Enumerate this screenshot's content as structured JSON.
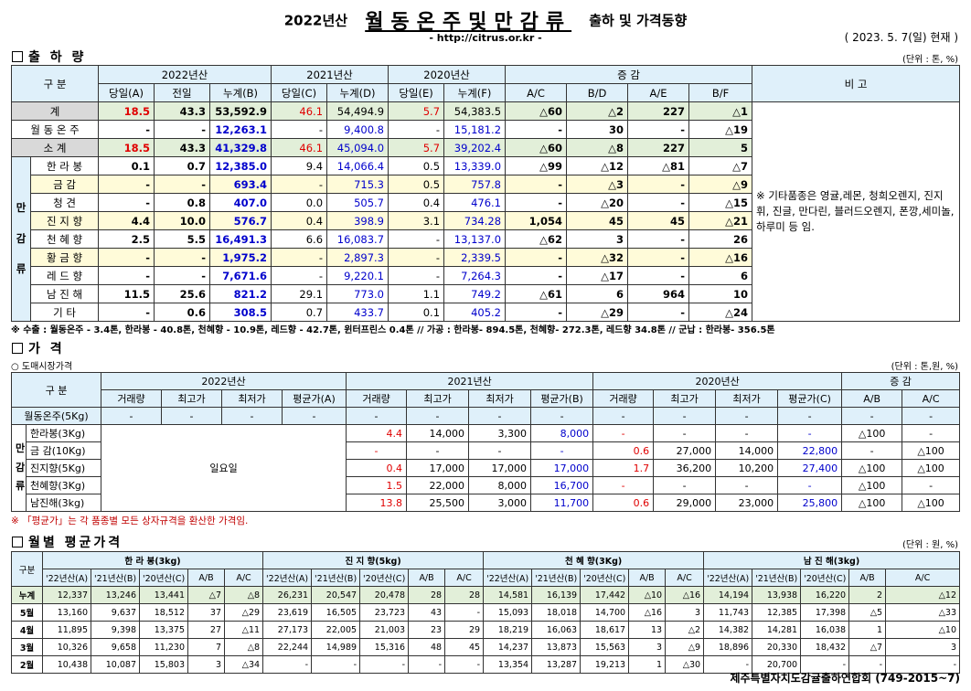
{
  "title": {
    "year": "2022년산",
    "main": "월동온주및만감류",
    "sub": "출하 및 가격동향",
    "url": "- http://citrus.or.kr -",
    "date": "( 2023.  5. 7(일) 현재 )"
  },
  "sec1": {
    "title": "출 하 량",
    "unit": "(단위 : 톤, %)",
    "h_gubun": "구    분",
    "h_2022": "2022년산",
    "h_2021": "2021년산",
    "h_2020": "2020년산",
    "h_change": "증    감",
    "h_remark": "비  고",
    "sub": [
      "당일(A)",
      "전일",
      "누계(B)",
      "당일(C)",
      "누계(D)",
      "당일(E)",
      "누계(F)",
      "A/C",
      "B/D",
      "A/E",
      "B/F"
    ],
    "group_label": [
      "만",
      "감",
      "류"
    ],
    "remark": "※ 기타품종은 영귤,레몬, 청희오렌지, 진지휘, 진글, 만다린, 블러드오렌지, 폰깡,세미놀, 하루미 등 임.",
    "rows": [
      {
        "name": "계",
        "v": [
          "18.5",
          "43.3",
          "53,592.9",
          "46.1",
          "54,494.9",
          "5.7",
          "54,383.5",
          "△60",
          "△2",
          "227",
          "△1"
        ]
      },
      {
        "name": "월 동 온 주",
        "v": [
          "-",
          "-",
          "12,263.1",
          "-",
          "9,400.8",
          "-",
          "15,181.2",
          "-",
          "30",
          "-",
          "△19"
        ]
      },
      {
        "name": "소    계",
        "v": [
          "18.5",
          "43.3",
          "41,329.8",
          "46.1",
          "45,094.0",
          "5.7",
          "39,202.4",
          "△60",
          "△8",
          "227",
          "5"
        ]
      },
      {
        "name": "한 라 봉",
        "v": [
          "0.1",
          "0.7",
          "12,385.0",
          "9.4",
          "14,066.4",
          "0.5",
          "13,339.0",
          "△99",
          "△12",
          "△81",
          "△7"
        ]
      },
      {
        "name": "금    감",
        "v": [
          "-",
          "-",
          "693.4",
          "-",
          "715.3",
          "0.5",
          "757.8",
          "-",
          "△3",
          "-",
          "△9"
        ]
      },
      {
        "name": "청    견",
        "v": [
          "-",
          "0.8",
          "407.0",
          "0.0",
          "505.7",
          "0.4",
          "476.1",
          "-",
          "△20",
          "-",
          "△15"
        ]
      },
      {
        "name": "진 지 향",
        "v": [
          "4.4",
          "10.0",
          "576.7",
          "0.4",
          "398.9",
          "3.1",
          "734.28",
          "1,054",
          "45",
          "45",
          "△21"
        ]
      },
      {
        "name": "천 혜 향",
        "v": [
          "2.5",
          "5.5",
          "16,491.3",
          "6.6",
          "16,083.7",
          "-",
          "13,137.0",
          "△62",
          "3",
          "-",
          "26"
        ]
      },
      {
        "name": "황 금 향",
        "v": [
          "-",
          "-",
          "1,975.2",
          "-",
          "2,897.3",
          "-",
          "2,339.5",
          "-",
          "△32",
          "-",
          "△16"
        ]
      },
      {
        "name": "레 드 향",
        "v": [
          "-",
          "-",
          "7,671.6",
          "-",
          "9,220.1",
          "-",
          "7,264.3",
          "-",
          "△17",
          "-",
          "6"
        ]
      },
      {
        "name": "남 진 해",
        "v": [
          "11.5",
          "25.6",
          "821.2",
          "29.1",
          "773.0",
          "1.1",
          "749.2",
          "△61",
          "6",
          "964",
          "10"
        ]
      },
      {
        "name": "기    타",
        "v": [
          "-",
          "0.6",
          "308.5",
          "0.7",
          "433.7",
          "0.1",
          "405.2",
          "-",
          "△29",
          "-",
          "△24"
        ]
      }
    ],
    "note": "※ 수출 : 월동온주 - 3.4톤, 한라봉 - 40.8톤, 천혜향 - 10.9톤, 레드향 - 42.7톤, 윈터프린스 0.4톤 //  가공  :  한라봉- 894.5톤, 천혜향- 272.3톤, 레드향 34.8톤  //  군납 : 한라봉- 356.5톤"
  },
  "sec2": {
    "title": "가    격",
    "unit": "(단위 : 톤,원, %)",
    "subtitle": "○ 도매시장가격",
    "h_gubun": "구    분",
    "h_2022": "2022년산",
    "h_2021": "2021년산",
    "h_2020": "2020년산",
    "h_change": "증    감",
    "sub": [
      "거래량",
      "최고가",
      "최저가",
      "평균가(A)",
      "거래량",
      "최고가",
      "최저가",
      "평균가(B)",
      "거래량",
      "최고가",
      "최저가",
      "평균가(C)",
      "A/B",
      "A/C"
    ],
    "group_label": [
      "만",
      "감",
      "류"
    ],
    "holiday": "일요일",
    "rows": [
      {
        "name": "월동온주(5Kg)",
        "v": [
          "-",
          "-",
          "-",
          "-",
          "-",
          "-",
          "-",
          "-",
          "-",
          "-",
          "-",
          "-",
          "-",
          "-"
        ]
      },
      {
        "name": "한라봉(3Kg)",
        "v": [
          "",
          "",
          "",
          "",
          "4.4",
          "14,000",
          "3,300",
          "8,000",
          "-",
          "-",
          "-",
          "-",
          "△100",
          "-"
        ]
      },
      {
        "name": "금 감(10Kg)",
        "v": [
          "",
          "",
          "",
          "",
          "-",
          "-",
          "-",
          "-",
          "0.6",
          "27,000",
          "14,000",
          "22,800",
          "-",
          "△100"
        ]
      },
      {
        "name": "진지향(5Kg)",
        "v": [
          "",
          "",
          "",
          "",
          "0.4",
          "17,000",
          "17,000",
          "17,000",
          "1.7",
          "36,200",
          "10,200",
          "27,400",
          "△100",
          "△100"
        ]
      },
      {
        "name": "천혜향(3Kg)",
        "v": [
          "",
          "",
          "",
          "",
          "1.5",
          "22,000",
          "8,000",
          "16,700",
          "-",
          "-",
          "-",
          "-",
          "△100",
          "-"
        ]
      },
      {
        "name": "남진해(3kg)",
        "v": [
          "",
          "",
          "",
          "",
          "13.8",
          "25,500",
          "3,000",
          "11,700",
          "0.6",
          "29,000",
          "23,000",
          "25,800",
          "△100",
          "△100"
        ]
      }
    ],
    "note": "※ 「평균가」는 각 품종별 모든 상자규격을 환산한 가격임."
  },
  "sec3": {
    "title": "월별 평균가격",
    "unit": "(단위 : 원, %)",
    "h_gubun": "구분",
    "groups": [
      "한  라  봉(3kg)",
      "진  지  향(5kg)",
      "천  혜  향(3Kg)",
      "남  진  해(3kg)"
    ],
    "sub": [
      "'22년산(A)",
      "'21년산(B)",
      "'20년산(C)",
      "A/B",
      "A/C"
    ],
    "rows": [
      {
        "name": "누계",
        "v": [
          "12,337",
          "13,246",
          "13,441",
          "△7",
          "△8",
          "26,231",
          "20,547",
          "20,478",
          "28",
          "28",
          "14,581",
          "16,139",
          "17,442",
          "△10",
          "△16",
          "14,194",
          "13,938",
          "16,220",
          "2",
          "△12"
        ]
      },
      {
        "name": "5월",
        "v": [
          "13,160",
          "9,637",
          "18,512",
          "37",
          "△29",
          "23,619",
          "16,505",
          "23,723",
          "43",
          "-",
          "15,093",
          "18,018",
          "14,700",
          "△16",
          "3",
          "11,743",
          "12,385",
          "17,398",
          "△5",
          "△33"
        ]
      },
      {
        "name": "4월",
        "v": [
          "11,895",
          "9,398",
          "13,375",
          "27",
          "△11",
          "27,173",
          "22,005",
          "21,003",
          "23",
          "29",
          "18,219",
          "16,063",
          "18,617",
          "13",
          "△2",
          "14,382",
          "14,281",
          "16,038",
          "1",
          "△10"
        ]
      },
      {
        "name": "3월",
        "v": [
          "10,326",
          "9,658",
          "11,230",
          "7",
          "△8",
          "22,244",
          "14,989",
          "15,316",
          "48",
          "45",
          "14,237",
          "13,873",
          "15,563",
          "3",
          "△9",
          "18,896",
          "20,330",
          "18,432",
          "△7",
          "3"
        ]
      },
      {
        "name": "2월",
        "v": [
          "10,438",
          "10,087",
          "15,803",
          "3",
          "△34",
          "-",
          "-",
          "-",
          "-",
          "-",
          "13,354",
          "13,287",
          "19,213",
          "1",
          "△30",
          "-",
          "20,700",
          "-",
          "-",
          "-"
        ]
      }
    ]
  },
  "footer": "제주특별자치도감귤출하연합회 (749-2015~7)"
}
